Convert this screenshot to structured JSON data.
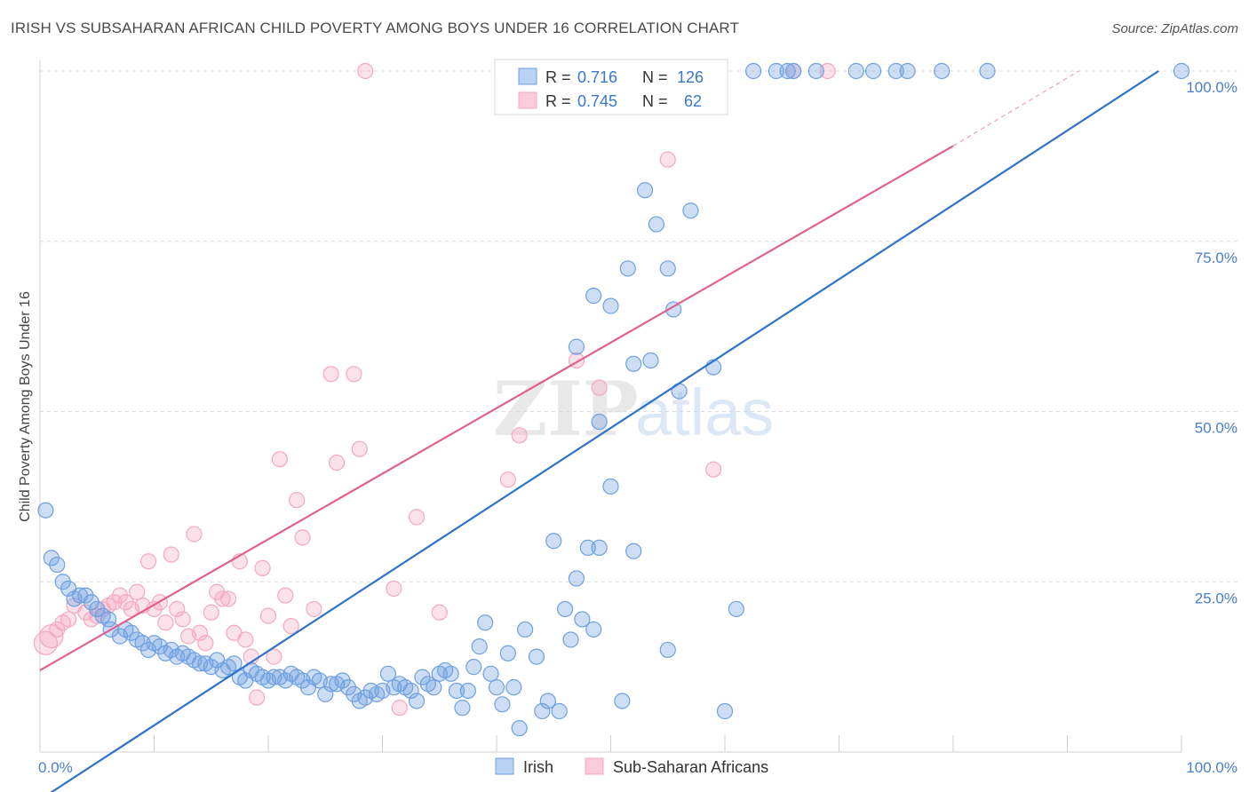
{
  "title": "IRISH VS SUBSAHARAN AFRICAN CHILD POVERTY AMONG BOYS UNDER 16 CORRELATION CHART",
  "source": "Source: ZipAtlas.com",
  "watermark": {
    "zip": "ZIP",
    "atlas": "atlas"
  },
  "chart_data": {
    "type": "scatter",
    "ylabel": "Child Poverty Among Boys Under 16",
    "xlim": [
      0,
      100
    ],
    "ylim": [
      0,
      100
    ],
    "x_tick_labels": {
      "left": "0.0%",
      "right": "100.0%"
    },
    "y_ticks": [
      {
        "value": 100,
        "label": "100.0%"
      },
      {
        "value": 75,
        "label": "75.0%"
      },
      {
        "value": 50,
        "label": "50.0%"
      },
      {
        "value": 25,
        "label": "25.0%"
      }
    ],
    "grid": true,
    "legend": {
      "placement": "top-center",
      "rows": [
        {
          "r_label": "R =",
          "r_value": "0.716",
          "n_label": "N =",
          "n_value": "126"
        },
        {
          "r_label": "R =",
          "r_value": "0.745",
          "n_label": "N =",
          "n_value": "62"
        }
      ]
    },
    "series": [
      {
        "name": "Irish",
        "color": "#6fa0e0",
        "line_color": "#2f72c9",
        "trend": {
          "x0": 0,
          "y0": -7,
          "x1": 98,
          "y1": 100
        },
        "points": [
          [
            0.5,
            35.5
          ],
          [
            1,
            28.5
          ],
          [
            1.5,
            27.5
          ],
          [
            2,
            25
          ],
          [
            2.5,
            24
          ],
          [
            3,
            22.5
          ],
          [
            3.5,
            23
          ],
          [
            4,
            23
          ],
          [
            4.5,
            22
          ],
          [
            5,
            21
          ],
          [
            5.5,
            20
          ],
          [
            6,
            19.5
          ],
          [
            6.2,
            18
          ],
          [
            7,
            17
          ],
          [
            7.5,
            18
          ],
          [
            8,
            17.5
          ],
          [
            8.5,
            16.5
          ],
          [
            9,
            16
          ],
          [
            9.5,
            15
          ],
          [
            10,
            16
          ],
          [
            10.5,
            15.5
          ],
          [
            11,
            14.5
          ],
          [
            11.5,
            15
          ],
          [
            12,
            14
          ],
          [
            12.5,
            14.5
          ],
          [
            13,
            14
          ],
          [
            13.5,
            13.5
          ],
          [
            14,
            13
          ],
          [
            14.5,
            13
          ],
          [
            15,
            12.5
          ],
          [
            15.5,
            13.5
          ],
          [
            16,
            12
          ],
          [
            16.5,
            12.5
          ],
          [
            17,
            13
          ],
          [
            17.5,
            11
          ],
          [
            18,
            10.5
          ],
          [
            18.5,
            12
          ],
          [
            19,
            11.5
          ],
          [
            19.5,
            11
          ],
          [
            20,
            10.5
          ],
          [
            20.5,
            11
          ],
          [
            21,
            11
          ],
          [
            21.5,
            10.5
          ],
          [
            22,
            11.5
          ],
          [
            22.5,
            11
          ],
          [
            23,
            10.5
          ],
          [
            23.5,
            9.5
          ],
          [
            24,
            11
          ],
          [
            24.5,
            10.5
          ],
          [
            25,
            8.5
          ],
          [
            25.5,
            10
          ],
          [
            26,
            10
          ],
          [
            26.5,
            10.5
          ],
          [
            27,
            9.5
          ],
          [
            27.5,
            8.5
          ],
          [
            28,
            7.5
          ],
          [
            28.5,
            8
          ],
          [
            29,
            9
          ],
          [
            29.5,
            8.5
          ],
          [
            30,
            9
          ],
          [
            30.5,
            11.5
          ],
          [
            31,
            9.5
          ],
          [
            31.5,
            10
          ],
          [
            32,
            9.5
          ],
          [
            32.5,
            9
          ],
          [
            33,
            7.5
          ],
          [
            33.5,
            11
          ],
          [
            34,
            10
          ],
          [
            34.5,
            9.5
          ],
          [
            35,
            11.5
          ],
          [
            35.5,
            12
          ],
          [
            36,
            11.5
          ],
          [
            36.5,
            9
          ],
          [
            37,
            6.5
          ],
          [
            37.5,
            9
          ],
          [
            38,
            12.5
          ],
          [
            38.5,
            15.5
          ],
          [
            39,
            19
          ],
          [
            39.5,
            11.5
          ],
          [
            40,
            9.5
          ],
          [
            40.5,
            7
          ],
          [
            41,
            14.5
          ],
          [
            41.5,
            9.5
          ],
          [
            42,
            3.5
          ],
          [
            42.5,
            18
          ],
          [
            43.5,
            14
          ],
          [
            44,
            6
          ],
          [
            44.5,
            7.5
          ],
          [
            45,
            31
          ],
          [
            45.5,
            6
          ],
          [
            46,
            21
          ],
          [
            46.5,
            16.5
          ],
          [
            47,
            25.5
          ],
          [
            47.5,
            19.5
          ],
          [
            48,
            30
          ],
          [
            48.5,
            18
          ],
          [
            49,
            30
          ],
          [
            50,
            39
          ],
          [
            51,
            7.5
          ],
          [
            51.5,
            71
          ],
          [
            52,
            57
          ],
          [
            53,
            82.5
          ],
          [
            53.5,
            57.5
          ],
          [
            54,
            77.5
          ],
          [
            55,
            71
          ],
          [
            55.5,
            65
          ],
          [
            56,
            53
          ],
          [
            57,
            79.5
          ],
          [
            59,
            56.5
          ],
          [
            60,
            6
          ],
          [
            61,
            21
          ],
          [
            62.5,
            100
          ],
          [
            64.5,
            100
          ],
          [
            65.5,
            100
          ],
          [
            66,
            100
          ],
          [
            68,
            100
          ],
          [
            71.5,
            100
          ],
          [
            73,
            100
          ],
          [
            75,
            100
          ],
          [
            76,
            100
          ],
          [
            79,
            100
          ],
          [
            83,
            100
          ],
          [
            100,
            100
          ],
          [
            49,
            48.5
          ],
          [
            47,
            59.5
          ],
          [
            48.5,
            67
          ],
          [
            50,
            65.5
          ],
          [
            48,
            97
          ],
          [
            52,
            29.5
          ],
          [
            55,
            15
          ]
        ]
      },
      {
        "name": "Sub-Saharan Africans",
        "color": "#f4a8c2",
        "line_color": "#e0608e",
        "trend": {
          "x0": 0,
          "y0": 12,
          "x1": 80,
          "y1": 89
        },
        "trend_dashed": {
          "x0": 80,
          "y0": 89,
          "x1": 91,
          "y1": 100
        },
        "points": [
          [
            0.5,
            16
          ],
          [
            1,
            17
          ],
          [
            1.5,
            18
          ],
          [
            2,
            19
          ],
          [
            2.5,
            19.5
          ],
          [
            3,
            21.5
          ],
          [
            4,
            20.5
          ],
          [
            4.5,
            19.5
          ],
          [
            5,
            20
          ],
          [
            5.5,
            21
          ],
          [
            6,
            21.5
          ],
          [
            6.5,
            22
          ],
          [
            7,
            23
          ],
          [
            7.5,
            22
          ],
          [
            8,
            21
          ],
          [
            8.5,
            23.5
          ],
          [
            9,
            21.5
          ],
          [
            9.5,
            28
          ],
          [
            10,
            21
          ],
          [
            10.5,
            22
          ],
          [
            11,
            19
          ],
          [
            11.5,
            29
          ],
          [
            12,
            21
          ],
          [
            12.5,
            19.5
          ],
          [
            13,
            17
          ],
          [
            13.5,
            32
          ],
          [
            14,
            17.5
          ],
          [
            14.5,
            16
          ],
          [
            15,
            20.5
          ],
          [
            15.5,
            23.5
          ],
          [
            16,
            22.5
          ],
          [
            16.5,
            22.5
          ],
          [
            17,
            17.5
          ],
          [
            17.5,
            28
          ],
          [
            18,
            16.5
          ],
          [
            18.5,
            14
          ],
          [
            19,
            8
          ],
          [
            19.5,
            27
          ],
          [
            20,
            20
          ],
          [
            20.5,
            14
          ],
          [
            21,
            43
          ],
          [
            21.5,
            23
          ],
          [
            22,
            18.5
          ],
          [
            22.5,
            37
          ],
          [
            23,
            31.5
          ],
          [
            24,
            21
          ],
          [
            25.5,
            55.5
          ],
          [
            26,
            42.5
          ],
          [
            27.5,
            55.5
          ],
          [
            28,
            44.5
          ],
          [
            28.5,
            100
          ],
          [
            31,
            24
          ],
          [
            31.5,
            6.5
          ],
          [
            33,
            34.5
          ],
          [
            35,
            20.5
          ],
          [
            41,
            40
          ],
          [
            42,
            46.5
          ],
          [
            47,
            57.5
          ],
          [
            49,
            53.5
          ],
          [
            55,
            87
          ],
          [
            59,
            41.5
          ],
          [
            66,
            100
          ],
          [
            69,
            100
          ]
        ]
      }
    ]
  },
  "bottom_legend": [
    {
      "label": "Irish"
    },
    {
      "label": "Sub-Saharan Africans"
    }
  ]
}
